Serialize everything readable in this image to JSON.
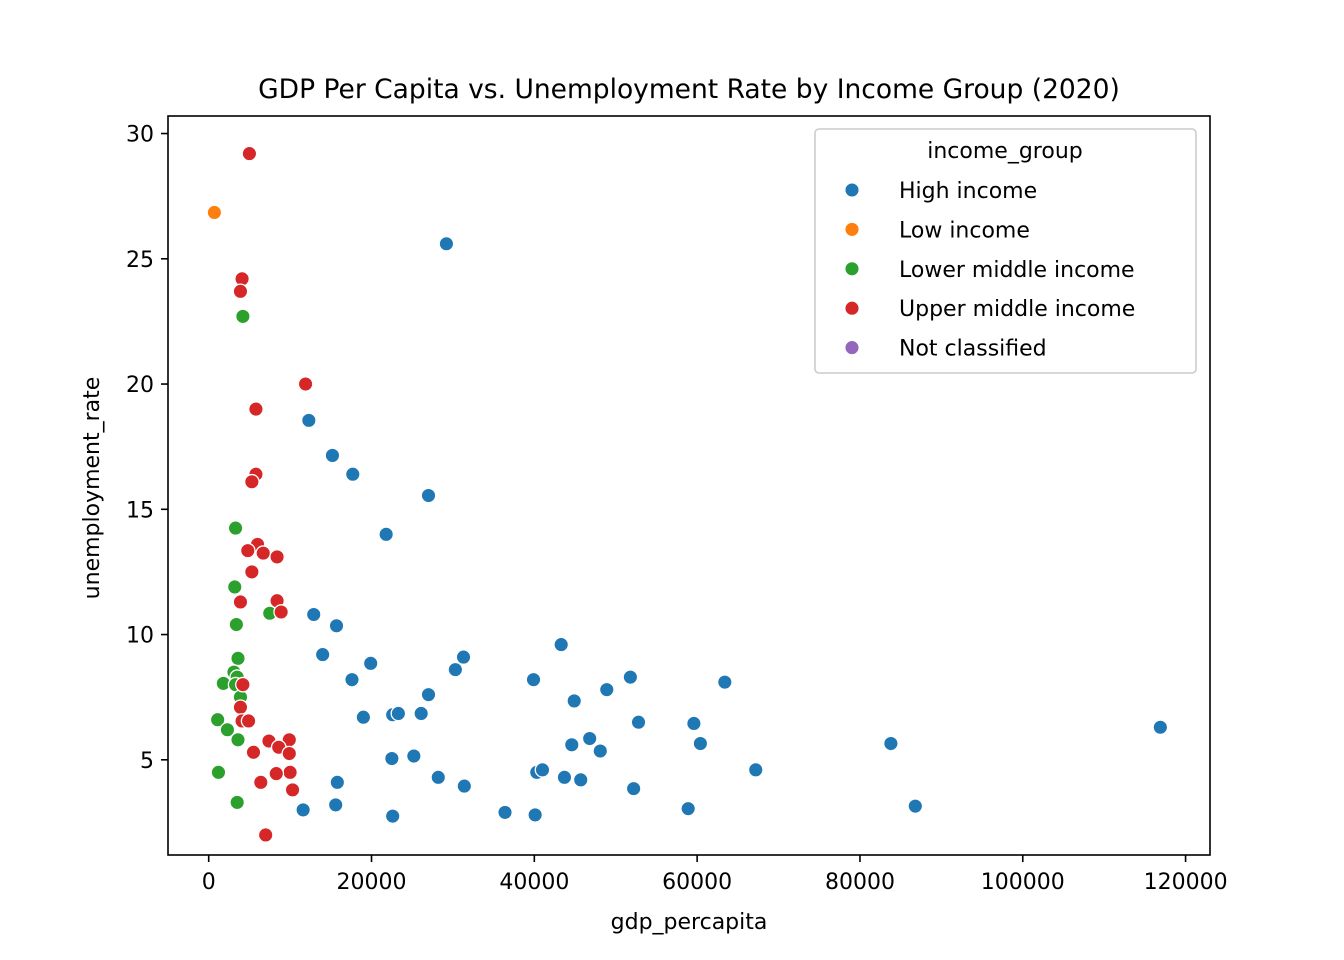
{
  "chart_data": {
    "type": "scatter",
    "title": "GDP Per Capita vs. Unemployment Rate by Income Group (2020)",
    "xlabel": "gdp_percapita",
    "ylabel": "unemployment_rate",
    "xlim": [
      -5000,
      123000
    ],
    "ylim": [
      1.2,
      30.7
    ],
    "xticks": [
      0,
      20000,
      40000,
      60000,
      80000,
      100000,
      120000
    ],
    "xtick_labels": [
      "0",
      "20000",
      "40000",
      "60000",
      "80000",
      "100000",
      "120000"
    ],
    "yticks": [
      5,
      10,
      15,
      20,
      25,
      30
    ],
    "ytick_labels": [
      "5",
      "10",
      "15",
      "20",
      "25",
      "30"
    ],
    "grid": false,
    "legend": {
      "title": "income_group",
      "position": "upper right",
      "entries": [
        "High income",
        "Low income",
        "Lower middle income",
        "Upper middle income",
        "Not classified"
      ]
    },
    "series": [
      {
        "name": "High income",
        "color": "#1f77b4",
        "points": [
          [
            29200,
            25.6
          ],
          [
            12300,
            18.55
          ],
          [
            15200,
            17.15
          ],
          [
            17700,
            16.4
          ],
          [
            27000,
            15.55
          ],
          [
            21800,
            14.0
          ],
          [
            12900,
            10.8
          ],
          [
            15700,
            10.35
          ],
          [
            14000,
            9.2
          ],
          [
            19900,
            8.85
          ],
          [
            17600,
            8.2
          ],
          [
            43300,
            9.6
          ],
          [
            31300,
            9.1
          ],
          [
            30300,
            8.6
          ],
          [
            39900,
            8.2
          ],
          [
            51800,
            8.3
          ],
          [
            63400,
            8.1
          ],
          [
            27000,
            7.6
          ],
          [
            48900,
            7.8
          ],
          [
            44900,
            7.35
          ],
          [
            19000,
            6.7
          ],
          [
            22600,
            6.8
          ],
          [
            23300,
            6.85
          ],
          [
            26100,
            6.85
          ],
          [
            52800,
            6.5
          ],
          [
            59600,
            6.45
          ],
          [
            116900,
            6.3
          ],
          [
            83800,
            5.65
          ],
          [
            60400,
            5.65
          ],
          [
            46800,
            5.85
          ],
          [
            44600,
            5.6
          ],
          [
            48100,
            5.35
          ],
          [
            22500,
            5.05
          ],
          [
            25200,
            5.15
          ],
          [
            40300,
            4.5
          ],
          [
            41000,
            4.6
          ],
          [
            67200,
            4.6
          ],
          [
            43700,
            4.3
          ],
          [
            45700,
            4.2
          ],
          [
            28200,
            4.3
          ],
          [
            31400,
            3.95
          ],
          [
            52200,
            3.85
          ],
          [
            15800,
            4.1
          ],
          [
            11600,
            3.0
          ],
          [
            15600,
            3.2
          ],
          [
            22600,
            2.75
          ],
          [
            36400,
            2.9
          ],
          [
            40100,
            2.8
          ],
          [
            58900,
            3.05
          ],
          [
            86800,
            3.15
          ]
        ]
      },
      {
        "name": "Low income",
        "color": "#ff7f0e",
        "points": [
          [
            700,
            26.85
          ]
        ]
      },
      {
        "name": "Lower middle income",
        "color": "#2ca02c",
        "points": [
          [
            4200,
            22.7
          ],
          [
            3300,
            14.25
          ],
          [
            3200,
            11.9
          ],
          [
            3400,
            10.4
          ],
          [
            7500,
            10.85
          ],
          [
            3600,
            9.05
          ],
          [
            3100,
            8.5
          ],
          [
            3500,
            8.3
          ],
          [
            1800,
            8.05
          ],
          [
            3300,
            8.0
          ],
          [
            3900,
            7.5
          ],
          [
            1100,
            6.6
          ],
          [
            2300,
            6.2
          ],
          [
            3600,
            5.8
          ],
          [
            1200,
            4.5
          ],
          [
            3500,
            3.3
          ]
        ]
      },
      {
        "name": "Upper middle income",
        "color": "#d62728",
        "points": [
          [
            5000,
            29.2
          ],
          [
            4100,
            24.2
          ],
          [
            3900,
            23.7
          ],
          [
            11900,
            20.0
          ],
          [
            5800,
            19.0
          ],
          [
            5800,
            16.4
          ],
          [
            5300,
            16.1
          ],
          [
            6000,
            13.6
          ],
          [
            4800,
            13.35
          ],
          [
            6700,
            13.25
          ],
          [
            8400,
            13.1
          ],
          [
            5300,
            12.5
          ],
          [
            8400,
            11.35
          ],
          [
            8900,
            10.9
          ],
          [
            3900,
            11.3
          ],
          [
            4200,
            8.0
          ],
          [
            3900,
            7.1
          ],
          [
            4100,
            6.55
          ],
          [
            4900,
            6.55
          ],
          [
            7400,
            5.75
          ],
          [
            9900,
            5.8
          ],
          [
            8600,
            5.5
          ],
          [
            9900,
            5.25
          ],
          [
            5500,
            5.3
          ],
          [
            10000,
            4.5
          ],
          [
            8300,
            4.45
          ],
          [
            6400,
            4.1
          ],
          [
            10300,
            3.8
          ],
          [
            7000,
            2.0
          ]
        ]
      },
      {
        "name": "Not classified",
        "color": "#9467bd",
        "points": []
      }
    ]
  }
}
